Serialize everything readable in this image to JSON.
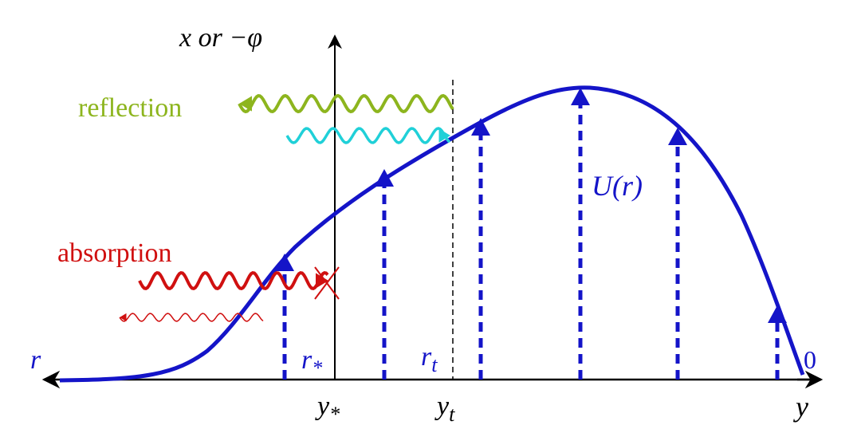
{
  "vertical_axis": {
    "label": "x  or  −φ"
  },
  "horizontal_axis": {
    "label": "y",
    "marks": [
      {
        "symbol": "y",
        "subscript": "*"
      },
      {
        "symbol": "y",
        "subscript": "t"
      }
    ]
  },
  "waves": {
    "reflection": "reflection",
    "absorption": "absorption"
  },
  "potential": {
    "label": "U(r)"
  },
  "radial_labels": {
    "r": "r",
    "r_star": {
      "symbol": "r",
      "subscript": "*"
    },
    "r_t": {
      "symbol": "r",
      "subscript": "t"
    },
    "zero": "0"
  }
}
